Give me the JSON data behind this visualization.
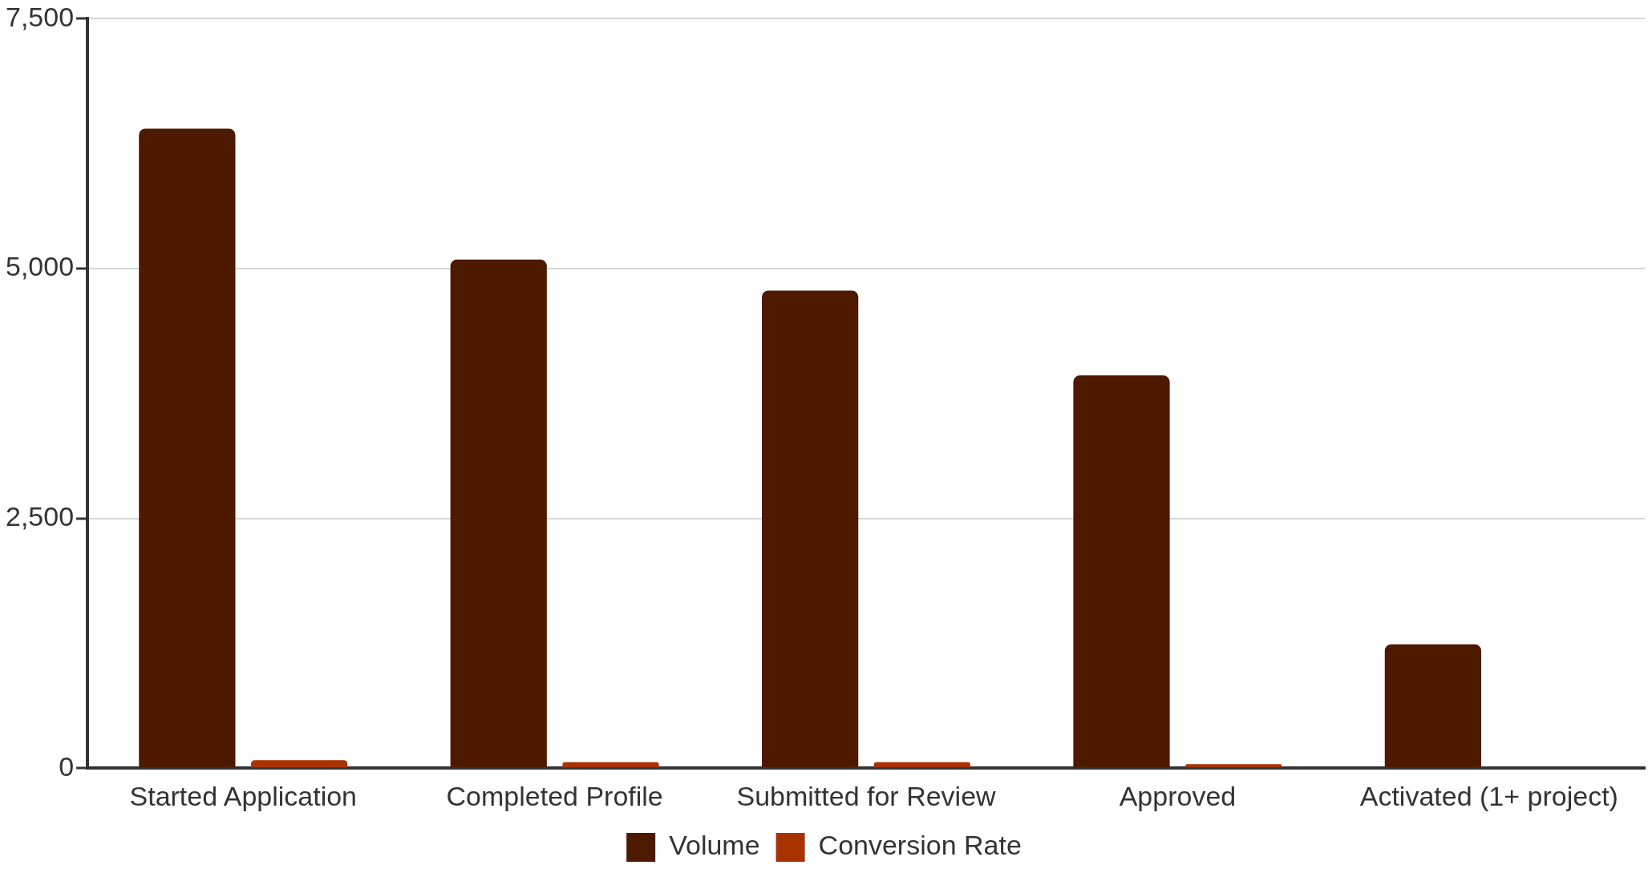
{
  "chart_data": {
    "type": "bar",
    "categories": [
      "Started Application",
      "Completed Profile",
      "Submitted for Review",
      "Approved",
      "Activated (1+ project)"
    ],
    "series": [
      {
        "name": "Volume",
        "color": "#4d1a00",
        "values": [
          6400,
          5090,
          4780,
          3930,
          1240
        ]
      },
      {
        "name": "Conversion Rate",
        "color": "#a83200",
        "values": [
          80,
          60,
          60,
          40,
          null
        ]
      }
    ],
    "ylim": [
      0,
      7500
    ],
    "yticks": [
      0,
      {
        "value": 2500,
        "label": "2,500"
      },
      {
        "value": 5000,
        "label": "5,000"
      },
      {
        "value": 7500,
        "label": "7,500"
      }
    ],
    "grid": "y",
    "legend": "bottom"
  }
}
